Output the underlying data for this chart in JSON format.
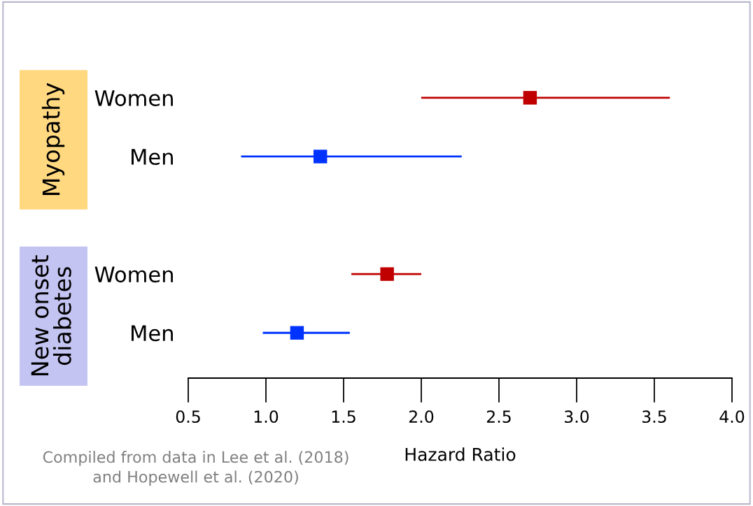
{
  "chart_data": {
    "type": "scatter",
    "orientation": "horizontal",
    "marker": "square",
    "categories": [
      "Women",
      "Men",
      null,
      "Women",
      "Men"
    ],
    "values": [
      2.7,
      1.35,
      null,
      1.78,
      1.2
    ],
    "errors": [
      [
        2.0,
        3.6
      ],
      [
        0.84,
        2.26
      ],
      null,
      [
        1.55,
        2.0
      ],
      [
        0.98,
        1.54
      ]
    ],
    "colors": [
      "#c00000",
      "#0033ff",
      "#ffffff",
      "#c00000",
      "#0033ff"
    ],
    "xlabel": "Hazard Ratio",
    "xlim": [
      0.5,
      4.0
    ],
    "xticks": [
      {
        "value": 0.5,
        "label": "0.5"
      },
      {
        "value": 1.0,
        "label": "1.0"
      },
      {
        "value": 1.5,
        "label": "1.5"
      },
      {
        "value": 2.0,
        "label": "2.0"
      },
      {
        "value": 2.5,
        "label": "2.5"
      },
      {
        "value": 3.0,
        "label": "3.0"
      },
      {
        "value": 3.5,
        "label": "3.5"
      },
      {
        "value": 4.0,
        "label": "4.0"
      }
    ],
    "annotations": [
      "Myopathy",
      "New onset\ndiabetes",
      "Compiled from data in Lee et al. (2018)\nand Hopewell et al. (2020)"
    ],
    "grid": false
  }
}
